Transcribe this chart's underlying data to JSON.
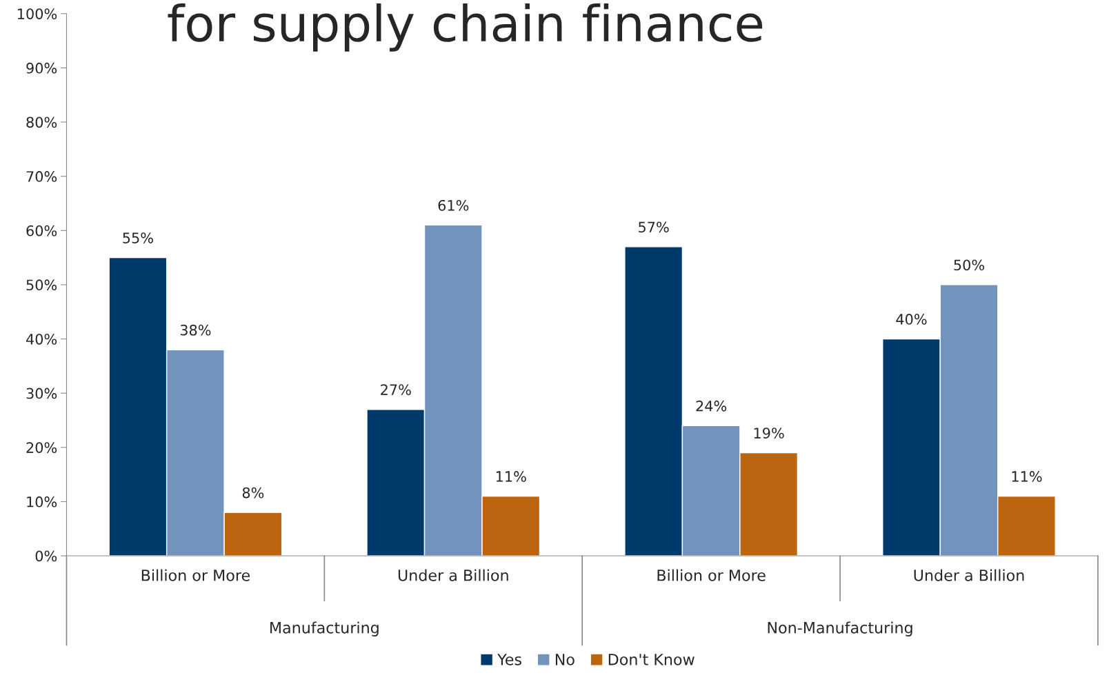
{
  "chart_data": {
    "type": "bar",
    "title": "for supply chain finance",
    "categories": [
      "Billion or More",
      "Under a Billion",
      "Billion or More",
      "Under a Billion"
    ],
    "annotations": [
      "Manufacturing",
      "Non-Manufacturing"
    ],
    "series": [
      {
        "name": "Yes",
        "color": "#003a6b",
        "values": [
          55,
          27,
          57,
          40
        ],
        "value_labels": [
          "55%",
          "27%",
          "57%",
          "40%"
        ]
      },
      {
        "name": "No",
        "color": "#7293bb",
        "values": [
          38,
          61,
          24,
          50
        ],
        "value_labels": [
          "38%",
          "61%",
          "24%",
          "50%"
        ]
      },
      {
        "name": "Don't Know",
        "color": "#bb6511",
        "values": [
          8,
          11,
          19,
          11
        ],
        "value_labels": [
          "8%",
          "11%",
          "19%",
          "11%"
        ]
      }
    ],
    "ylim": [
      0,
      100
    ],
    "yticks": [
      {
        "value": 0,
        "label": "0%"
      },
      {
        "value": 10,
        "label": "10%"
      },
      {
        "value": 20,
        "label": "20%"
      },
      {
        "value": 30,
        "label": "30%"
      },
      {
        "value": 40,
        "label": "40%"
      },
      {
        "value": 50,
        "label": "50%"
      },
      {
        "value": 60,
        "label": "60%"
      },
      {
        "value": 70,
        "label": "70%"
      },
      {
        "value": 80,
        "label": "80%"
      },
      {
        "value": 90,
        "label": "90%"
      },
      {
        "value": 100,
        "label": "100%"
      }
    ],
    "grid": false,
    "legend": "bottom"
  }
}
